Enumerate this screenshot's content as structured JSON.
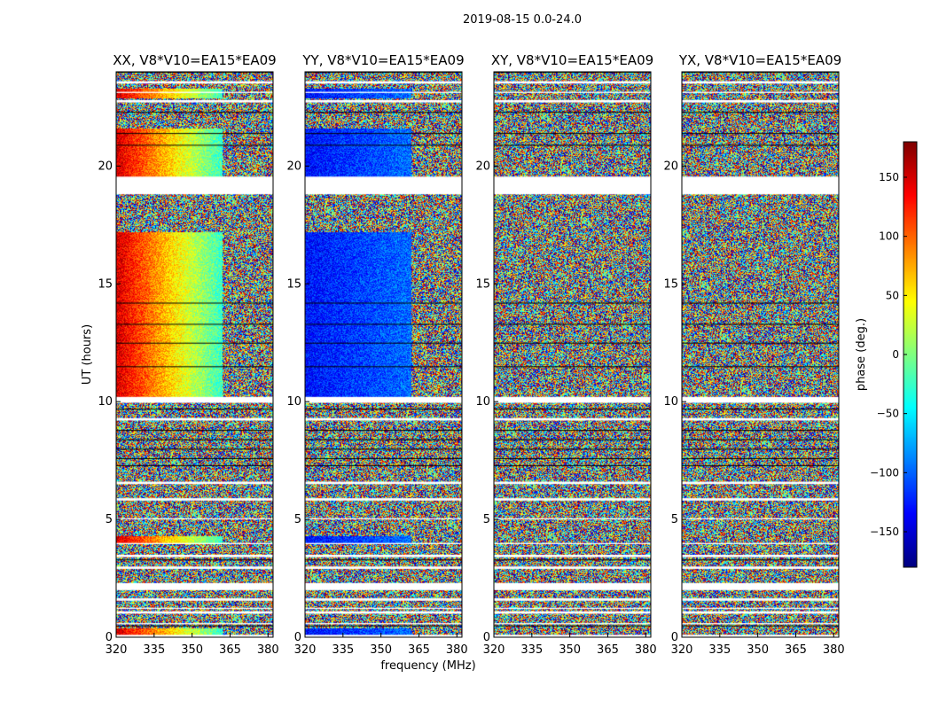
{
  "chart_data": [
    {
      "type": "heatmap",
      "title": "XX, V8*V10=EA15*EA09",
      "xlabel": "",
      "ylabel": "UT (hours)",
      "xlim": [
        320,
        382
      ],
      "ylim": [
        0,
        24
      ],
      "x_ticks": [
        "320",
        "335",
        "350",
        "365",
        "380"
      ],
      "y_ticks": [
        "0",
        "5",
        "10",
        "15",
        "20"
      ],
      "pattern": "coherent",
      "base_phase_deg": 150,
      "slope_deg_per_mhz": -4.2
    },
    {
      "type": "heatmap",
      "title": "YY, V8*V10=EA15*EA09",
      "xlabel": "frequency (MHz)",
      "ylabel": "",
      "xlim": [
        320,
        382
      ],
      "ylim": [
        0,
        24
      ],
      "x_ticks": [
        "320",
        "335",
        "350",
        "365",
        "380"
      ],
      "y_ticks": [
        "0",
        "5",
        "10",
        "15",
        "20"
      ],
      "pattern": "coherent",
      "base_phase_deg": -130,
      "slope_deg_per_mhz": 0.8
    },
    {
      "type": "heatmap",
      "title": "XY, V8*V10=EA15*EA09",
      "xlabel": "",
      "ylabel": "",
      "xlim": [
        320,
        382
      ],
      "ylim": [
        0,
        24
      ],
      "x_ticks": [
        "320",
        "335",
        "350",
        "365",
        "380"
      ],
      "y_ticks": [
        "0",
        "5",
        "10",
        "15",
        "20"
      ],
      "pattern": "noise"
    },
    {
      "type": "heatmap",
      "title": "YX, V8*V10=EA15*EA09",
      "xlabel": "",
      "ylabel": "",
      "xlim": [
        320,
        382
      ],
      "ylim": [
        0,
        24
      ],
      "x_ticks": [
        "320",
        "335",
        "350",
        "365",
        "380"
      ],
      "y_ticks": [
        "0",
        "5",
        "10",
        "15",
        "20"
      ],
      "pattern": "noise"
    }
  ],
  "figure": {
    "suptitle": "2019-08-15 0.0-24.0",
    "colorbar": {
      "label": "phase (deg.)",
      "range": [
        -180,
        180
      ],
      "ticks": [
        "150",
        "100",
        "50",
        "0",
        "−50",
        "−100",
        "−150"
      ],
      "tick_values": [
        150,
        100,
        50,
        0,
        -50,
        -100,
        -150
      ],
      "colormap": "jet"
    },
    "flagged_time_ranges_hours": [
      [
        0.0,
        0.1
      ],
      [
        0.55,
        0.6
      ],
      [
        1.0,
        1.1
      ],
      [
        1.2,
        1.25
      ],
      [
        1.55,
        1.65
      ],
      [
        2.0,
        2.3
      ],
      [
        2.9,
        3.0
      ],
      [
        3.4,
        3.5
      ],
      [
        3.95,
        4.0
      ],
      [
        5.0,
        5.05
      ],
      [
        5.8,
        5.9
      ],
      [
        6.5,
        6.6
      ],
      [
        9.2,
        9.3
      ],
      [
        9.95,
        10.2
      ],
      [
        18.8,
        19.55
      ],
      [
        22.7,
        22.8
      ],
      [
        23.1,
        23.15
      ],
      [
        23.5,
        23.6
      ]
    ],
    "dark_gap_times_hours": [
      0.5,
      3.3,
      7.3,
      7.6,
      8.0,
      8.4,
      8.8,
      9.7,
      11.5,
      12.5,
      13.3,
      14.2,
      20.9,
      21.4,
      22.3,
      24.0
    ]
  }
}
